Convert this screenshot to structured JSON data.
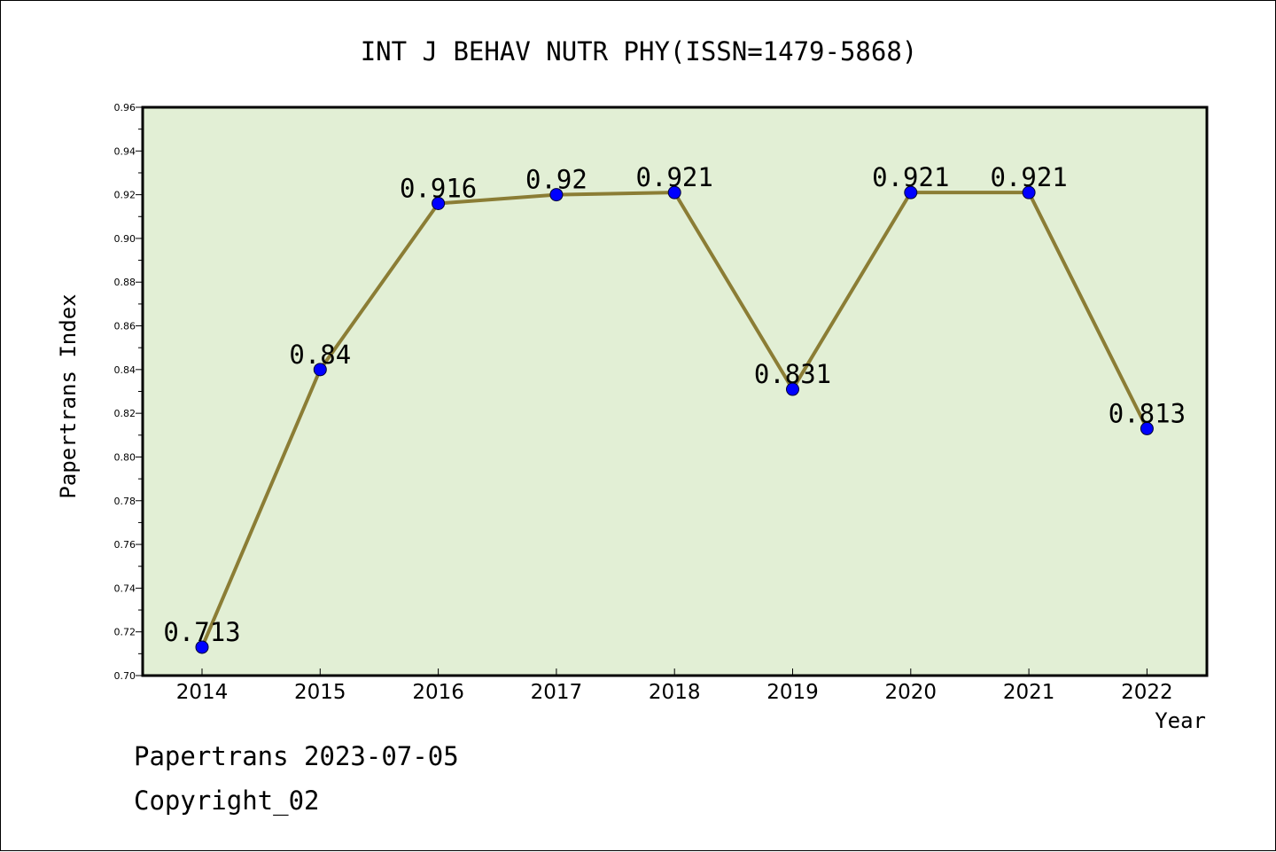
{
  "chart_data": {
    "type": "line",
    "title": "INT J BEHAV NUTR PHY(ISSN=1479-5868)",
    "xlabel": "Year",
    "ylabel": "Papertrans Index",
    "categories": [
      "2014",
      "2015",
      "2016",
      "2017",
      "2018",
      "2019",
      "2020",
      "2021",
      "2022"
    ],
    "series": [
      {
        "name": "Papertrans Index",
        "values": [
          0.713,
          0.84,
          0.916,
          0.92,
          0.921,
          0.831,
          0.921,
          0.921,
          0.813
        ],
        "labels": [
          "0.713",
          "0.84",
          "0.916",
          "0.92",
          "0.921",
          "0.831",
          "0.921",
          "0.921",
          "0.813"
        ]
      }
    ],
    "ylim": [
      0.7,
      0.96
    ],
    "yticks": [
      "0.70",
      "0.72",
      "0.74",
      "0.76",
      "0.78",
      "0.80",
      "0.82",
      "0.84",
      "0.86",
      "0.88",
      "0.90",
      "0.92",
      "0.94",
      "0.96"
    ],
    "grid": false,
    "colors": {
      "plot_background": "#e2efd5",
      "line": "#8b7d35",
      "marker": "#0000ff",
      "axis": "#000000"
    }
  },
  "footer": {
    "line1": "Papertrans 2023-07-05",
    "line2": "Copyright_02"
  }
}
